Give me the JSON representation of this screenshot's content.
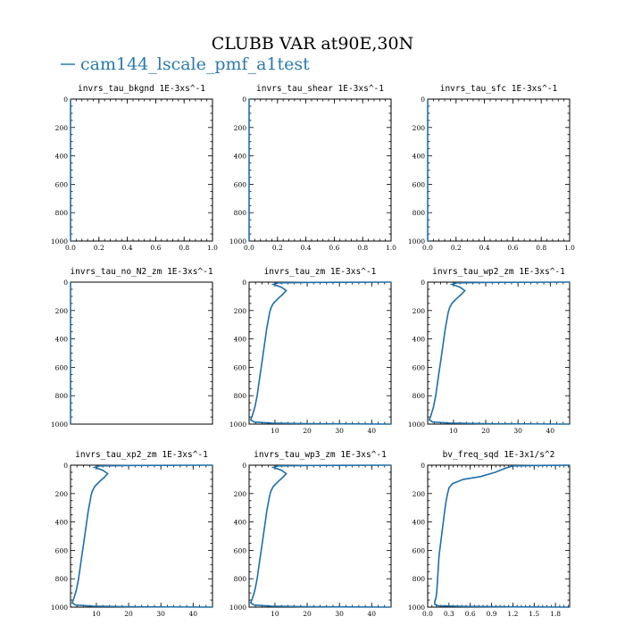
{
  "figure": {
    "title": "CLUBB VAR at90E,30N",
    "legend_label": "cam144_lscale_pmf_a1test",
    "line_color": "#1f6fa8"
  },
  "chart_data": [
    {
      "type": "line",
      "title": "invrs_tau_bkgnd   1E-3xs^-1",
      "xlim": [
        0,
        1
      ],
      "ylim": [
        1000,
        0
      ],
      "xticks": [
        "0.0",
        "0.2",
        "0.4",
        "0.6",
        "0.8",
        "1.0"
      ],
      "xtick_values": [
        0,
        0.2,
        0.4,
        0.6,
        0.8,
        1.0
      ],
      "yticks": [
        "0",
        "200",
        "400",
        "600",
        "800",
        "1000"
      ],
      "yinverted": true,
      "series": [
        {
          "x": [
            0,
            0
          ],
          "y": [
            0,
            1000
          ]
        }
      ]
    },
    {
      "type": "line",
      "title": "invrs_tau_shear   1E-3xs^-1",
      "xlim": [
        0,
        1
      ],
      "ylim": [
        1000,
        0
      ],
      "xticks": [
        "0.0",
        "0.2",
        "0.4",
        "0.6",
        "0.8",
        "1.0"
      ],
      "xtick_values": [
        0,
        0.2,
        0.4,
        0.6,
        0.8,
        1.0
      ],
      "yticks": [
        "0",
        "200",
        "400",
        "600",
        "800",
        "1000"
      ],
      "yinverted": true,
      "series": [
        {
          "x": [
            0,
            0
          ],
          "y": [
            0,
            1000
          ]
        }
      ]
    },
    {
      "type": "line",
      "title": "invrs_tau_sfc   1E-3xs^-1",
      "xlim": [
        0,
        1
      ],
      "ylim": [
        1000,
        0
      ],
      "xticks": [
        "0.0",
        "0.2",
        "0.4",
        "0.6",
        "0.8",
        "1.0"
      ],
      "xtick_values": [
        0,
        0.2,
        0.4,
        0.6,
        0.8,
        1.0
      ],
      "yticks": [
        "0",
        "200",
        "400",
        "600",
        "800",
        "1000"
      ],
      "yinverted": true,
      "series": [
        {
          "x": [
            0,
            0
          ],
          "y": [
            0,
            1000
          ]
        }
      ]
    },
    {
      "type": "line",
      "title": "invrs_tau_no_N2_zm   1E-3xs^-1",
      "xlim": [
        0,
        1
      ],
      "ylim": [
        1000,
        0
      ],
      "xticks": [],
      "xtick_values": [],
      "yticks": [
        "0",
        "200",
        "400",
        "600",
        "800",
        "1000"
      ],
      "yinverted": true,
      "series": [
        {
          "x": [
            0,
            0
          ],
          "y": [
            0,
            1000
          ]
        }
      ]
    },
    {
      "type": "line",
      "title": "invrs_tau_zm   1E-3xs^-1",
      "xlim": [
        2,
        46
      ],
      "ylim": [
        1000,
        0
      ],
      "xticks": [
        "10",
        "20",
        "30",
        "40"
      ],
      "xtick_values": [
        10,
        20,
        30,
        40
      ],
      "yticks": [
        "0",
        "200",
        "400",
        "600",
        "800",
        "1000"
      ],
      "yinverted": true,
      "series": [
        {
          "x": [
            46,
            20,
            11,
            9.5,
            12,
            13.5,
            12.5,
            11,
            9.5,
            8.8,
            8.4,
            8,
            7.5,
            7,
            6.5,
            6,
            5.5,
            5,
            4.5,
            3.8,
            3,
            2.5,
            3.5,
            9,
            20,
            46
          ],
          "y": [
            0,
            2,
            5,
            15,
            35,
            60,
            85,
            115,
            150,
            180,
            210,
            260,
            320,
            400,
            480,
            560,
            640,
            720,
            800,
            880,
            940,
            970,
            985,
            993,
            997,
            1000
          ]
        }
      ]
    },
    {
      "type": "line",
      "title": "invrs_tau_wp2_zm   1E-3xs^-1",
      "xlim": [
        2,
        46
      ],
      "ylim": [
        1000,
        0
      ],
      "xticks": [
        "10",
        "20",
        "30",
        "40"
      ],
      "xtick_values": [
        10,
        20,
        30,
        40
      ],
      "yticks": [
        "0",
        "200",
        "400",
        "600",
        "800",
        "1000"
      ],
      "yinverted": true,
      "series": [
        {
          "x": [
            46,
            20,
            11,
            9.5,
            12,
            13.5,
            12.5,
            11,
            9.5,
            8.8,
            8.4,
            8,
            7.5,
            7,
            6.5,
            6,
            5.5,
            5,
            4.5,
            3.8,
            3,
            2.5,
            3.5,
            9,
            20,
            46
          ],
          "y": [
            0,
            2,
            5,
            15,
            35,
            60,
            85,
            115,
            150,
            180,
            210,
            260,
            320,
            400,
            480,
            560,
            640,
            720,
            800,
            880,
            940,
            970,
            985,
            993,
            997,
            1000
          ]
        }
      ]
    },
    {
      "type": "line",
      "title": "invrs_tau_xp2_zm   1E-3xs^-1",
      "xlim": [
        2,
        46
      ],
      "ylim": [
        1000,
        0
      ],
      "xticks": [
        "10",
        "20",
        "30",
        "40"
      ],
      "xtick_values": [
        10,
        20,
        30,
        40
      ],
      "yticks": [
        "0",
        "200",
        "400",
        "600",
        "800",
        "1000"
      ],
      "yinverted": true,
      "series": [
        {
          "x": [
            46,
            20,
            11,
            9.5,
            12,
            13.5,
            12.5,
            11,
            9.5,
            8.8,
            8.4,
            8,
            7.5,
            7,
            6.5,
            6,
            5.5,
            5,
            4.5,
            3.8,
            3,
            2.5,
            3.5,
            9,
            20,
            46
          ],
          "y": [
            0,
            2,
            5,
            15,
            35,
            60,
            85,
            115,
            150,
            180,
            210,
            260,
            320,
            400,
            480,
            560,
            640,
            720,
            800,
            880,
            940,
            970,
            985,
            993,
            997,
            1000
          ]
        }
      ]
    },
    {
      "type": "line",
      "title": "invrs_tau_wp3_zm   1E-3xs^-1",
      "xlim": [
        2,
        46
      ],
      "ylim": [
        1000,
        0
      ],
      "xticks": [
        "10",
        "20",
        "30",
        "40"
      ],
      "xtick_values": [
        10,
        20,
        30,
        40
      ],
      "yticks": [
        "0",
        "200",
        "400",
        "600",
        "800",
        "1000"
      ],
      "yinverted": true,
      "series": [
        {
          "x": [
            46,
            20,
            11,
            9.5,
            12,
            13.5,
            12.5,
            11,
            9.5,
            8.8,
            8.4,
            8,
            7.5,
            7,
            6.5,
            6,
            5.5,
            5,
            4.5,
            3.8,
            3,
            2.5,
            3.5,
            9,
            20,
            46
          ],
          "y": [
            0,
            2,
            5,
            15,
            35,
            60,
            85,
            115,
            150,
            180,
            210,
            260,
            320,
            400,
            480,
            560,
            640,
            720,
            800,
            880,
            940,
            970,
            985,
            993,
            997,
            1000
          ]
        }
      ]
    },
    {
      "type": "line",
      "title": "bv_freq_sqd   1E-3x1/s^2",
      "xlim": [
        0,
        2
      ],
      "ylim": [
        1000,
        0
      ],
      "xticks": [
        "0.0",
        "0.3",
        "0.6",
        "0.9",
        "1.2",
        "1.5",
        "1.8"
      ],
      "xtick_values": [
        0,
        0.3,
        0.6,
        0.9,
        1.2,
        1.5,
        1.8
      ],
      "yticks": [
        "0",
        "200",
        "400",
        "600",
        "800",
        "1000"
      ],
      "yinverted": true,
      "series": [
        {
          "x": [
            2.0,
            1.5,
            1.2,
            1.1,
            0.95,
            0.75,
            0.5,
            0.35,
            0.3,
            0.28,
            0.26,
            0.24,
            0.22,
            0.2,
            0.18,
            0.16,
            0.15,
            0.14,
            0.13,
            0.12,
            0.1,
            0.1,
            0.15,
            0.5,
            1.2,
            2.0
          ],
          "y": [
            0,
            2,
            5,
            20,
            50,
            80,
            100,
            130,
            160,
            200,
            250,
            320,
            400,
            480,
            560,
            640,
            720,
            800,
            880,
            930,
            960,
            980,
            990,
            995,
            998,
            1000
          ]
        }
      ]
    }
  ]
}
